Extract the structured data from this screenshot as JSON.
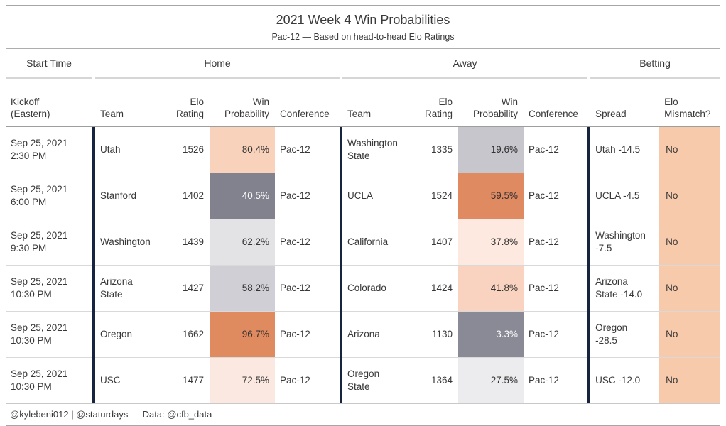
{
  "title": "2021 Week 4 Win Probabilities",
  "subtitle": "Pac-12 — Based on head-to-head Elo Ratings",
  "groups": {
    "start_time": "Start Time",
    "home": "Home",
    "away": "Away",
    "betting": "Betting"
  },
  "columns": {
    "kickoff": "Kickoff\n(Eastern)",
    "team": "Team",
    "elo_rating": "Elo\nRating",
    "win_probability": "Win\nProbability",
    "conference": "Conference",
    "spread": "Spread",
    "elo_mismatch": "Elo\nMismatch?"
  },
  "colors": {
    "section_separator": "#17243f",
    "mismatch_bg": "#f8caac",
    "dark_cell_text": "#fdfdfd",
    "cell_text": "#333333"
  },
  "rows": [
    {
      "kickoff": "Sep 25, 2021\n2:30 PM",
      "home": {
        "team": "Utah",
        "elo": "1526",
        "win": "80.4%",
        "win_bg": "#f8d2bb",
        "win_fg": "#333333",
        "conference": "Pac-12"
      },
      "away": {
        "team": "Washington\nState",
        "elo": "1335",
        "win": "19.6%",
        "win_bg": "#c6c6cc",
        "win_fg": "#333333",
        "conference": "Pac-12"
      },
      "spread": "Utah -14.5",
      "mismatch": "No"
    },
    {
      "kickoff": "Sep 25, 2021\n6:00 PM",
      "home": {
        "team": "Stanford",
        "elo": "1402",
        "win": "40.5%",
        "win_bg": "#82828e",
        "win_fg": "#fdfdfd",
        "conference": "Pac-12"
      },
      "away": {
        "team": "UCLA",
        "elo": "1524",
        "win": "59.5%",
        "win_bg": "#e08a62",
        "win_fg": "#333333",
        "conference": "Pac-12"
      },
      "spread": "UCLA -4.5",
      "mismatch": "No"
    },
    {
      "kickoff": "Sep 25, 2021\n9:30 PM",
      "home": {
        "team": "Washington",
        "elo": "1439",
        "win": "62.2%",
        "win_bg": "#e3e3e6",
        "win_fg": "#333333",
        "conference": "Pac-12"
      },
      "away": {
        "team": "California",
        "elo": "1407",
        "win": "37.8%",
        "win_bg": "#fde9df",
        "win_fg": "#333333",
        "conference": "Pac-12"
      },
      "spread": "Washington\n-7.5",
      "mismatch": "No"
    },
    {
      "kickoff": "Sep 25, 2021\n10:30 PM",
      "home": {
        "team": "Arizona\nState",
        "elo": "1427",
        "win": "58.2%",
        "win_bg": "#cfcfd5",
        "win_fg": "#333333",
        "conference": "Pac-12"
      },
      "away": {
        "team": "Colorado",
        "elo": "1424",
        "win": "41.8%",
        "win_bg": "#f9d3bf",
        "win_fg": "#333333",
        "conference": "Pac-12"
      },
      "spread": "Arizona\nState -14.0",
      "mismatch": "No"
    },
    {
      "kickoff": "Sep 25, 2021\n10:30 PM",
      "home": {
        "team": "Oregon",
        "elo": "1662",
        "win": "96.7%",
        "win_bg": "#e08a5f",
        "win_fg": "#333333",
        "conference": "Pac-12"
      },
      "away": {
        "team": "Arizona",
        "elo": "1130",
        "win": "3.3%",
        "win_bg": "#8a8a96",
        "win_fg": "#fdfdfd",
        "conference": "Pac-12"
      },
      "spread": "Oregon\n-28.5",
      "mismatch": "No"
    },
    {
      "kickoff": "Sep 25, 2021\n10:30 PM",
      "home": {
        "team": "USC",
        "elo": "1477",
        "win": "72.5%",
        "win_bg": "#fbe9e1",
        "win_fg": "#333333",
        "conference": "Pac-12"
      },
      "away": {
        "team": "Oregon\nState",
        "elo": "1364",
        "win": "27.5%",
        "win_bg": "#ececef",
        "win_fg": "#333333",
        "conference": "Pac-12"
      },
      "spread": "USC -12.0",
      "mismatch": "No"
    }
  ],
  "footer": "@kylebeni012 | @staturdays — Data: @cfb_data"
}
